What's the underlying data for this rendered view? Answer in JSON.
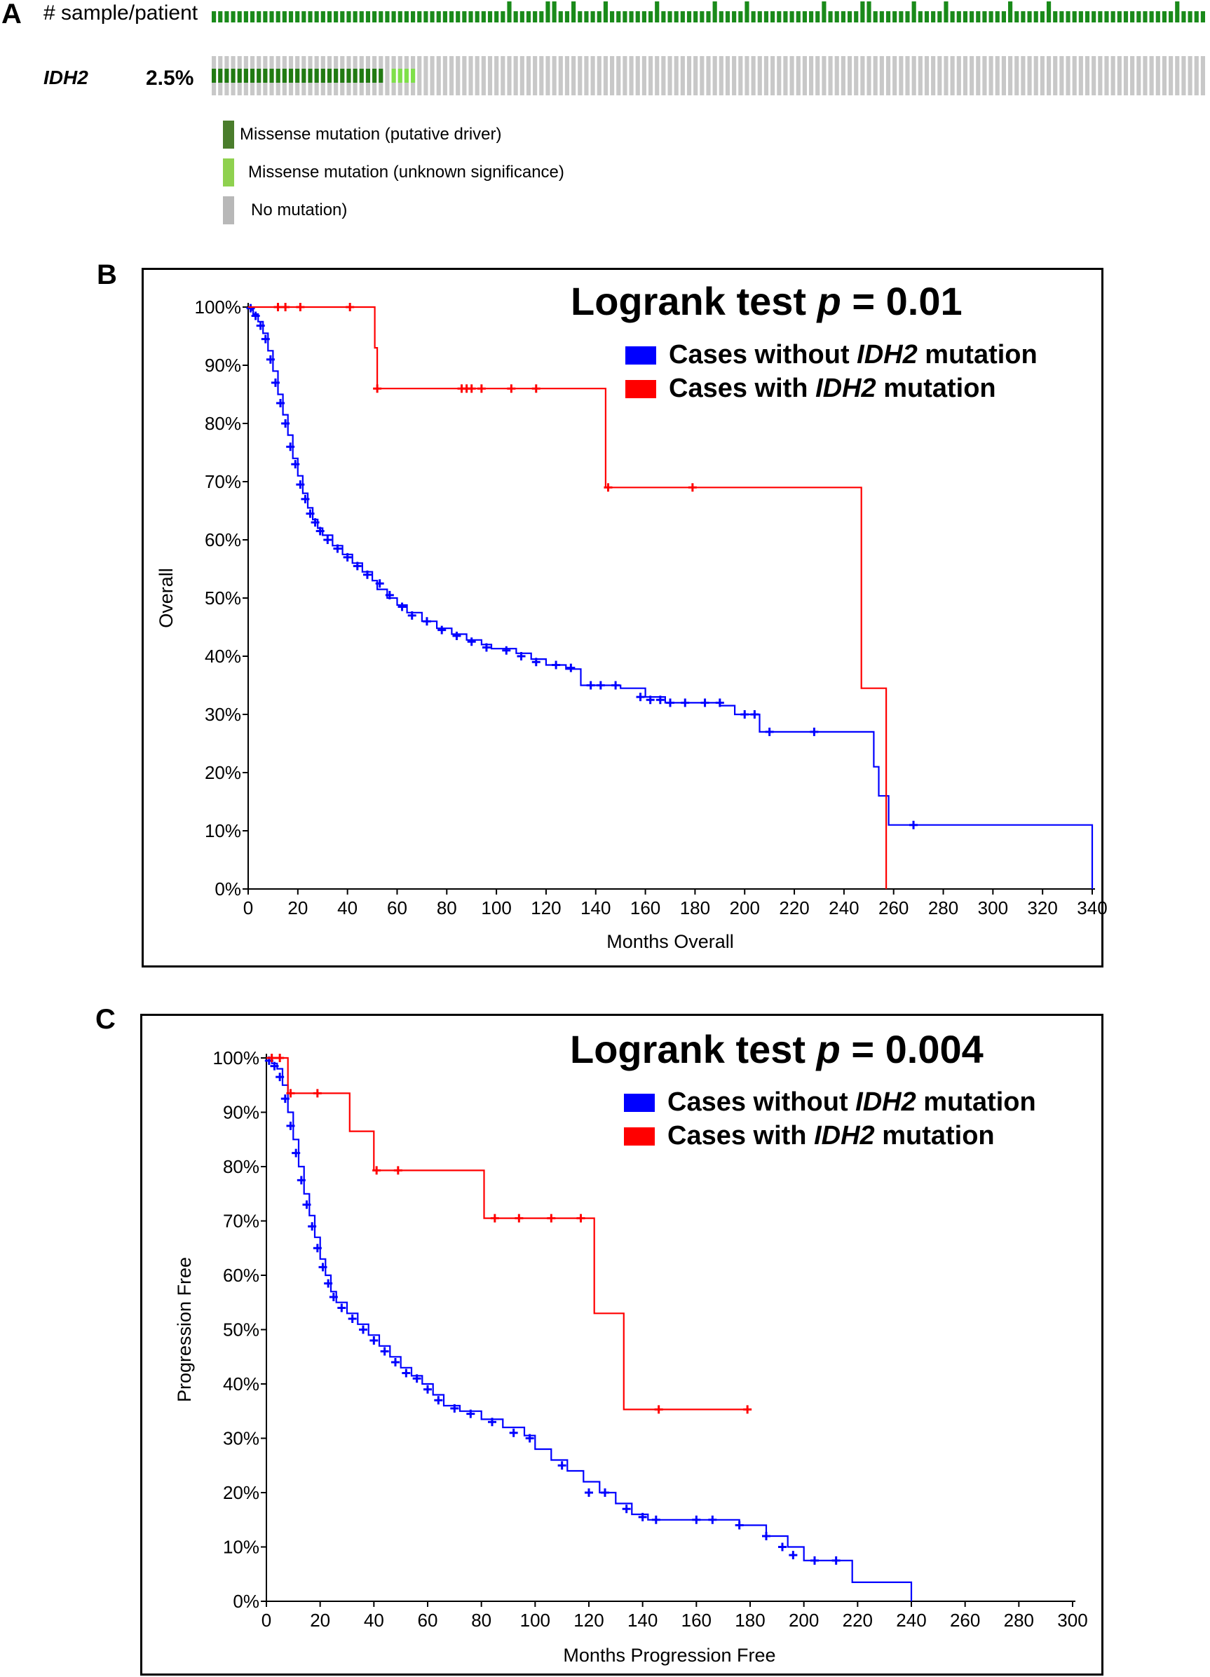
{
  "panel_labels": [
    "A",
    "B",
    "C"
  ],
  "oncoprint": {
    "track1_label": "# sample/patient",
    "gene_label": "IDH2",
    "gene_percent": "2.5%",
    "n_columns": 155,
    "n_driver": 27,
    "n_vus": 4,
    "legend": [
      {
        "label": "Missense mutation (putative driver)",
        "color": "#4a7d2c"
      },
      {
        "label": "Missense mutation (unknown significance)",
        "color": "#8fd14f"
      },
      {
        "label": "No mutation)",
        "color": "#b8b8b8"
      }
    ],
    "colors": {
      "sample_bar": "#1a8a1a",
      "driver": "#217a12",
      "vus": "#7fe04a",
      "none": "#c8c8c8"
    }
  },
  "chart_data": [
    {
      "type": "line",
      "panel": "B",
      "annotation": {
        "prefix": "Logrank test ",
        "italic": "p",
        "suffix": " = 0.01"
      },
      "xlabel": "Months Overall",
      "ylabel": "Overall",
      "xlim": [
        0,
        340
      ],
      "ylim": [
        0,
        100
      ],
      "xticks": [
        0,
        20,
        40,
        60,
        80,
        100,
        120,
        140,
        160,
        180,
        200,
        220,
        240,
        260,
        280,
        300,
        320,
        340
      ],
      "yticks": [
        0,
        10,
        20,
        30,
        40,
        50,
        60,
        70,
        80,
        90,
        100
      ],
      "ytick_labels": [
        "0%",
        "10%",
        "20%",
        "30%",
        "40%",
        "50%",
        "60%",
        "70%",
        "80%",
        "90%",
        "100%"
      ],
      "legend_position": "top-right",
      "series": [
        {
          "name_parts": [
            "Cases without ",
            "IDH2",
            " mutation"
          ],
          "color": "#0000ff",
          "step": [
            [
              0,
              100
            ],
            [
              1,
              99.5
            ],
            [
              2,
              98.8
            ],
            [
              4,
              97.5
            ],
            [
              6,
              95.5
            ],
            [
              8,
              92.5
            ],
            [
              10,
              89
            ],
            [
              12,
              85
            ],
            [
              14,
              81.5
            ],
            [
              16,
              78
            ],
            [
              18,
              74
            ],
            [
              20,
              71
            ],
            [
              22,
              68
            ],
            [
              24,
              65.5
            ],
            [
              26,
              63.5
            ],
            [
              28,
              62
            ],
            [
              30,
              60.8
            ],
            [
              34,
              59
            ],
            [
              38,
              57.5
            ],
            [
              42,
              56
            ],
            [
              46,
              54.5
            ],
            [
              50,
              53
            ],
            [
              52,
              51.5
            ],
            [
              56,
              50
            ],
            [
              60,
              48.8
            ],
            [
              64,
              47.5
            ],
            [
              70,
              46
            ],
            [
              76,
              44.8
            ],
            [
              82,
              43.8
            ],
            [
              88,
              42.8
            ],
            [
              94,
              42
            ],
            [
              98,
              41.3
            ],
            [
              108,
              40.5
            ],
            [
              114,
              39.5
            ],
            [
              120,
              38.5
            ],
            [
              128,
              37.8
            ],
            [
              134,
              35
            ],
            [
              150,
              34.5
            ],
            [
              160,
              33
            ],
            [
              168,
              32
            ],
            [
              190,
              31.5
            ],
            [
              196,
              30
            ],
            [
              206,
              27
            ],
            [
              234,
              27
            ],
            [
              252,
              21
            ],
            [
              254,
              16
            ],
            [
              258,
              11
            ],
            [
              270,
              11
            ],
            [
              340,
              11
            ],
            [
              340,
              0
            ]
          ],
          "censor": [
            [
              1,
              99.8
            ],
            [
              3,
              98.5
            ],
            [
              5,
              96.8
            ],
            [
              7,
              94.5
            ],
            [
              9,
              91
            ],
            [
              11,
              87
            ],
            [
              13,
              83.5
            ],
            [
              15,
              80
            ],
            [
              17,
              76
            ],
            [
              19,
              73
            ],
            [
              21,
              69.5
            ],
            [
              23,
              67
            ],
            [
              25,
              64.5
            ],
            [
              27,
              63
            ],
            [
              29,
              61.5
            ],
            [
              32,
              60
            ],
            [
              36,
              58.5
            ],
            [
              40,
              57
            ],
            [
              44,
              55.5
            ],
            [
              48,
              54
            ],
            [
              53,
              52.5
            ],
            [
              57,
              50.5
            ],
            [
              62,
              48.5
            ],
            [
              66,
              47
            ],
            [
              72,
              46
            ],
            [
              78,
              44.5
            ],
            [
              84,
              43.5
            ],
            [
              90,
              42.5
            ],
            [
              96,
              41.5
            ],
            [
              104,
              41
            ],
            [
              110,
              40
            ],
            [
              116,
              39
            ],
            [
              124,
              38.5
            ],
            [
              130,
              38
            ],
            [
              138,
              35
            ],
            [
              142,
              35
            ],
            [
              148,
              35
            ],
            [
              158,
              33
            ],
            [
              162,
              32.5
            ],
            [
              166,
              32.5
            ],
            [
              170,
              32
            ],
            [
              176,
              32
            ],
            [
              184,
              32
            ],
            [
              190,
              32
            ],
            [
              200,
              30
            ],
            [
              204,
              30
            ],
            [
              210,
              27
            ],
            [
              228,
              27
            ],
            [
              268,
              11
            ]
          ]
        },
        {
          "name_parts": [
            "Cases with ",
            "IDH2",
            " mutation"
          ],
          "color": "#ff0000",
          "step": [
            [
              0,
              100
            ],
            [
              51,
              100
            ],
            [
              51,
              93
            ],
            [
              52,
              86
            ],
            [
              144,
              86
            ],
            [
              144,
              69
            ],
            [
              247,
              69
            ],
            [
              247,
              34.5
            ],
            [
              257,
              34.5
            ],
            [
              257,
              0
            ]
          ],
          "censor": [
            [
              12,
              100
            ],
            [
              15,
              100
            ],
            [
              21,
              100
            ],
            [
              41,
              100
            ],
            [
              52,
              86
            ],
            [
              86,
              86
            ],
            [
              88,
              86
            ],
            [
              90,
              86
            ],
            [
              94,
              86
            ],
            [
              106,
              86
            ],
            [
              116,
              86
            ],
            [
              145,
              69
            ],
            [
              179,
              69
            ]
          ]
        }
      ]
    },
    {
      "type": "line",
      "panel": "C",
      "annotation": {
        "prefix": "Logrank test ",
        "italic": "p",
        "suffix": " = 0.004"
      },
      "xlabel": "Months Progression Free",
      "ylabel": "Progression Free",
      "xlim": [
        0,
        300
      ],
      "ylim": [
        0,
        100
      ],
      "xticks": [
        0,
        20,
        40,
        60,
        80,
        100,
        120,
        140,
        160,
        180,
        200,
        220,
        240,
        260,
        280,
        300
      ],
      "yticks": [
        0,
        10,
        20,
        30,
        40,
        50,
        60,
        70,
        80,
        90,
        100
      ],
      "ytick_labels": [
        "0%",
        "10%",
        "20%",
        "30%",
        "40%",
        "50%",
        "60%",
        "70%",
        "80%",
        "90%",
        "100%"
      ],
      "legend_position": "top-right",
      "series": [
        {
          "name_parts": [
            "Cases without ",
            "IDH2",
            " mutation"
          ],
          "color": "#0000ff",
          "step": [
            [
              0,
              100
            ],
            [
              2,
              99
            ],
            [
              4,
              98
            ],
            [
              6,
              95
            ],
            [
              8,
              90
            ],
            [
              10,
              85
            ],
            [
              12,
              80
            ],
            [
              14,
              75
            ],
            [
              16,
              71
            ],
            [
              18,
              67
            ],
            [
              20,
              63
            ],
            [
              22,
              60
            ],
            [
              24,
              57
            ],
            [
              26,
              55
            ],
            [
              30,
              53
            ],
            [
              34,
              51
            ],
            [
              38,
              49
            ],
            [
              42,
              47
            ],
            [
              46,
              45
            ],
            [
              50,
              43
            ],
            [
              54,
              41.5
            ],
            [
              58,
              40
            ],
            [
              62,
              38
            ],
            [
              66,
              36
            ],
            [
              72,
              35
            ],
            [
              80,
              33.5
            ],
            [
              88,
              32
            ],
            [
              96,
              30.5
            ],
            [
              100,
              28
            ],
            [
              106,
              26
            ],
            [
              112,
              24
            ],
            [
              118,
              22
            ],
            [
              124,
              20
            ],
            [
              130,
              18
            ],
            [
              136,
              16
            ],
            [
              142,
              15
            ],
            [
              158,
              15
            ],
            [
              176,
              14
            ],
            [
              186,
              12
            ],
            [
              194,
              10
            ],
            [
              200,
              7.5
            ],
            [
              218,
              7.5
            ],
            [
              218,
              3.5
            ],
            [
              240,
              3.5
            ],
            [
              240,
              0
            ]
          ],
          "censor": [
            [
              1,
              99.5
            ],
            [
              3,
              98.5
            ],
            [
              5,
              96.5
            ],
            [
              7,
              92.5
            ],
            [
              9,
              87.5
            ],
            [
              11,
              82.5
            ],
            [
              13,
              77.5
            ],
            [
              15,
              73
            ],
            [
              17,
              69
            ],
            [
              19,
              65
            ],
            [
              21,
              61.5
            ],
            [
              23,
              58.5
            ],
            [
              25,
              56
            ],
            [
              28,
              54
            ],
            [
              32,
              52
            ],
            [
              36,
              50
            ],
            [
              40,
              48
            ],
            [
              44,
              46
            ],
            [
              48,
              44
            ],
            [
              52,
              42
            ],
            [
              56,
              41
            ],
            [
              60,
              39
            ],
            [
              64,
              37
            ],
            [
              70,
              35.5
            ],
            [
              76,
              34.5
            ],
            [
              84,
              33
            ],
            [
              92,
              31
            ],
            [
              98,
              30
            ],
            [
              110,
              25
            ],
            [
              120,
              20
            ],
            [
              126,
              20
            ],
            [
              134,
              17
            ],
            [
              140,
              15.5
            ],
            [
              145,
              15
            ],
            [
              160,
              15
            ],
            [
              166,
              15
            ],
            [
              176,
              14
            ],
            [
              186,
              12
            ],
            [
              192,
              10
            ],
            [
              196,
              8.5
            ],
            [
              204,
              7.5
            ],
            [
              212,
              7.5
            ]
          ]
        },
        {
          "name_parts": [
            "Cases with ",
            "IDH2",
            " mutation"
          ],
          "color": "#ff0000",
          "step": [
            [
              0,
              100
            ],
            [
              8,
              100
            ],
            [
              8,
              93.5
            ],
            [
              31,
              93.5
            ],
            [
              31,
              86.5
            ],
            [
              40,
              86.5
            ],
            [
              40,
              79.3
            ],
            [
              81,
              79.3
            ],
            [
              81,
              70.5
            ],
            [
              122,
              70.5
            ],
            [
              122,
              53
            ],
            [
              133,
              53
            ],
            [
              133,
              35.3
            ],
            [
              180,
              35.3
            ]
          ],
          "censor": [
            [
              2,
              100
            ],
            [
              5,
              100
            ],
            [
              9,
              93.5
            ],
            [
              19,
              93.5
            ],
            [
              41,
              79.3
            ],
            [
              49,
              79.3
            ],
            [
              85,
              70.5
            ],
            [
              94,
              70.5
            ],
            [
              106,
              70.5
            ],
            [
              117,
              70.5
            ],
            [
              146,
              35.3
            ],
            [
              179,
              35.3
            ]
          ]
        }
      ]
    }
  ]
}
